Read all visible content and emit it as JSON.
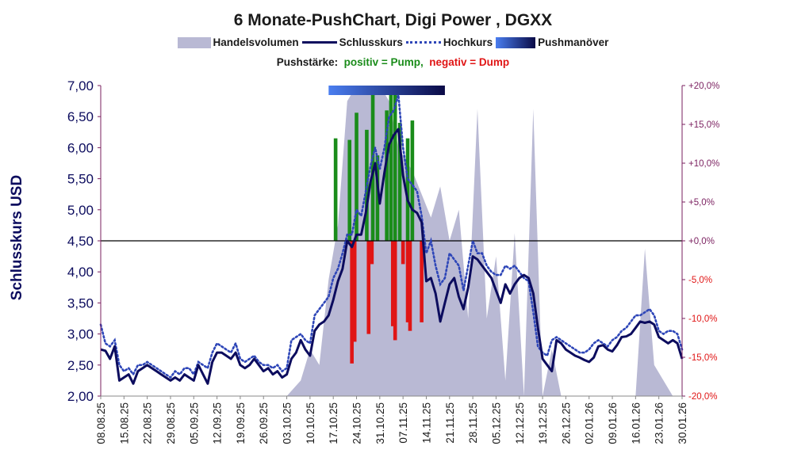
{
  "chart_data": {
    "type": "line",
    "title": "6 Monate-PushChart, Digi Power , DGXX",
    "subtitle": {
      "prefix": "Pushstärke:",
      "positive": "positiv = Pump,",
      "negative": "negativ = Dump"
    },
    "legend": [
      "Handelsvolumen",
      "Schlusskurs",
      "Hochkurs",
      "Pushmanöver"
    ],
    "legend_position": "top",
    "ylabel": "Schlusskurs USD",
    "ylim": [
      2.0,
      7.0
    ],
    "y_ticks": [
      "2,00",
      "2,50",
      "3,00",
      "3,50",
      "4,00",
      "4,50",
      "5,00",
      "5,50",
      "6,00",
      "6,50",
      "7,00"
    ],
    "y2_ticks": [
      "-20,0%",
      "-15,0%",
      "-10,0%",
      "-5,0%",
      "+0,0%",
      "+5,0%",
      "+10,0%",
      "+15,0%",
      "+20,0%"
    ],
    "y2_ticks_negative": [
      "-20,0%",
      "-15,0%",
      "-10,0%",
      "-5,0%"
    ],
    "y2lim": [
      -20,
      20
    ],
    "x_ticks": [
      "08.08.25",
      "15.08.25",
      "22.08.25",
      "29.08.25",
      "05.09.25",
      "12.09.25",
      "19.09.25",
      "26.09.25",
      "03.10.25",
      "10.10.25",
      "17.10.25",
      "24.10.25",
      "31.10.25",
      "07.11.25",
      "14.11.25",
      "21.11.25",
      "28.11.25",
      "05.12.25",
      "12.12.25",
      "19.12.25",
      "26.12.25",
      "02.01.26",
      "09.01.26",
      "16.01.26",
      "23.01.26",
      "30.01.26"
    ],
    "x_count": 126,
    "baseline_pct": 0,
    "push_maneuver": {
      "start": 49,
      "end": 74
    },
    "colors": {
      "volume": "#b9b9d4",
      "close": "#0c0c5e",
      "high": "#2e46b8",
      "pump": "#1a8c1a",
      "dump": "#e01515",
      "axis_left": "#0c0c5e",
      "axis_right": "#7a1f5f",
      "push_start": "#4a7ef0",
      "push_end": "#0a0a46"
    },
    "series": [
      {
        "name": "Schlusskurs",
        "x": [
          0,
          1,
          2,
          3,
          4,
          5,
          6,
          7,
          8,
          9,
          10,
          11,
          12,
          13,
          14,
          15,
          16,
          17,
          18,
          19,
          20,
          21,
          22,
          23,
          24,
          25,
          26,
          27,
          28,
          29,
          30,
          31,
          32,
          33,
          34,
          35,
          36,
          37,
          38,
          39,
          40,
          41,
          42,
          43,
          44,
          45,
          46,
          47,
          48,
          49,
          50,
          51,
          52,
          53,
          54,
          55,
          56,
          57,
          58,
          59,
          60,
          61,
          62,
          63,
          64,
          65,
          66,
          67,
          68,
          69,
          70,
          71,
          72,
          73,
          74,
          75,
          76,
          77,
          78,
          79,
          80,
          81,
          82,
          83,
          84,
          85,
          86,
          87,
          88,
          89,
          90,
          91,
          92,
          93,
          94,
          95,
          96,
          97,
          98,
          99,
          100,
          101,
          102,
          103,
          104,
          105,
          106,
          107,
          108,
          109,
          110,
          111,
          112,
          113,
          114,
          115,
          116,
          117,
          118,
          119,
          120,
          121,
          122,
          123,
          124,
          125
        ],
        "values": [
          2.75,
          2.73,
          2.6,
          2.8,
          2.25,
          2.3,
          2.35,
          2.2,
          2.4,
          2.45,
          2.5,
          2.45,
          2.4,
          2.35,
          2.3,
          2.25,
          2.3,
          2.25,
          2.35,
          2.3,
          2.25,
          2.5,
          2.35,
          2.2,
          2.55,
          2.7,
          2.7,
          2.65,
          2.6,
          2.7,
          2.5,
          2.45,
          2.5,
          2.6,
          2.5,
          2.4,
          2.45,
          2.35,
          2.4,
          2.3,
          2.35,
          2.6,
          2.7,
          2.9,
          2.75,
          2.65,
          3.05,
          3.15,
          3.2,
          3.3,
          3.55,
          3.85,
          4.05,
          4.5,
          4.4,
          4.6,
          4.6,
          4.95,
          5.45,
          5.75,
          5.1,
          5.6,
          6.05,
          6.2,
          6.3,
          5.55,
          5.15,
          5.0,
          4.95,
          4.8,
          3.85,
          3.9,
          3.65,
          3.2,
          3.5,
          3.8,
          3.9,
          3.6,
          3.4,
          3.75,
          4.25,
          4.2,
          4.1,
          4.0,
          3.9,
          3.7,
          3.5,
          3.8,
          3.65,
          3.8,
          3.9,
          3.95,
          3.9,
          3.65,
          3.1,
          2.6,
          2.5,
          2.4,
          2.9,
          2.85,
          2.75,
          2.7,
          2.65,
          2.62,
          2.58,
          2.55,
          2.62,
          2.8,
          2.82,
          2.75,
          2.72,
          2.82,
          2.95,
          2.96,
          3.0,
          3.1,
          3.2,
          3.18,
          3.2,
          3.15,
          2.95,
          2.9,
          2.85,
          2.9,
          2.85,
          2.6
        ]
      },
      {
        "name": "Hochkurs",
        "x": [
          0,
          1,
          2,
          3,
          4,
          5,
          6,
          7,
          8,
          9,
          10,
          11,
          12,
          13,
          14,
          15,
          16,
          17,
          18,
          19,
          20,
          21,
          22,
          23,
          24,
          25,
          26,
          27,
          28,
          29,
          30,
          31,
          32,
          33,
          34,
          35,
          36,
          37,
          38,
          39,
          40,
          41,
          42,
          43,
          44,
          45,
          46,
          47,
          48,
          49,
          50,
          51,
          52,
          53,
          54,
          55,
          56,
          57,
          58,
          59,
          60,
          61,
          62,
          63,
          64,
          65,
          66,
          67,
          68,
          69,
          70,
          71,
          72,
          73,
          74,
          75,
          76,
          77,
          78,
          79,
          80,
          81,
          82,
          83,
          84,
          85,
          86,
          87,
          88,
          89,
          90,
          91,
          92,
          93,
          94,
          95,
          96,
          97,
          98,
          99,
          100,
          101,
          102,
          103,
          104,
          105,
          106,
          107,
          108,
          109,
          110,
          111,
          112,
          113,
          114,
          115,
          116,
          117,
          118,
          119,
          120,
          121,
          122,
          123,
          124,
          125
        ],
        "values": [
          3.15,
          2.85,
          2.8,
          2.9,
          2.5,
          2.4,
          2.45,
          2.35,
          2.5,
          2.5,
          2.55,
          2.5,
          2.45,
          2.4,
          2.35,
          2.3,
          2.4,
          2.35,
          2.45,
          2.45,
          2.35,
          2.55,
          2.5,
          2.45,
          2.7,
          2.85,
          2.8,
          2.75,
          2.7,
          2.85,
          2.6,
          2.55,
          2.6,
          2.65,
          2.55,
          2.5,
          2.5,
          2.45,
          2.5,
          2.4,
          2.45,
          2.9,
          2.95,
          3.0,
          2.9,
          2.85,
          3.3,
          3.4,
          3.5,
          3.6,
          3.9,
          4.05,
          4.3,
          4.6,
          4.6,
          5.0,
          4.9,
          5.3,
          5.7,
          6.0,
          5.65,
          6.0,
          6.5,
          6.6,
          6.85,
          6.0,
          5.5,
          5.4,
          5.3,
          4.9,
          4.3,
          4.5,
          4.1,
          3.8,
          3.9,
          4.3,
          4.2,
          4.1,
          3.7,
          4.1,
          4.5,
          4.3,
          4.3,
          4.1,
          4.0,
          3.95,
          3.95,
          4.1,
          4.05,
          4.1,
          4.0,
          3.9,
          3.85,
          3.35,
          2.8,
          2.7,
          2.65,
          2.9,
          2.95,
          2.9,
          2.85,
          2.8,
          2.75,
          2.7,
          2.7,
          2.75,
          2.85,
          2.9,
          2.85,
          2.8,
          2.9,
          2.95,
          3.05,
          3.1,
          3.2,
          3.3,
          3.3,
          3.35,
          3.4,
          3.3,
          3.05,
          3.0,
          3.05,
          3.05,
          3.0,
          2.75
        ]
      },
      {
        "name": "Handelsvolumen",
        "x": [
          0,
          5,
          10,
          15,
          20,
          25,
          30,
          35,
          40,
          43,
          45,
          47,
          49,
          51,
          53,
          55,
          57,
          60,
          62,
          64,
          67,
          69,
          71,
          73,
          75,
          77,
          79,
          81,
          83,
          85,
          87,
          89,
          91,
          93,
          95,
          97,
          99,
          101,
          103,
          105,
          107,
          109,
          111,
          113,
          115,
          117,
          119,
          121,
          123,
          125
        ],
        "values_pct": [
          -20,
          -20,
          -20,
          -20,
          -20,
          -20,
          -20,
          -20,
          -20,
          -18,
          -14,
          -16,
          -5,
          2,
          18,
          20,
          20,
          20,
          18,
          12,
          9,
          6,
          3,
          7,
          0,
          4,
          -10,
          17,
          -10,
          -2,
          -18,
          1,
          -20,
          17,
          -20,
          -14,
          -20,
          -20,
          -20,
          -20,
          -20,
          -20,
          -20,
          -20,
          -20,
          -1,
          -16,
          -18,
          -20,
          -20
        ]
      }
    ],
    "push_bars": [
      {
        "x": 50.5,
        "pct": 13.2,
        "sign": "pump"
      },
      {
        "x": 53.5,
        "pct": 13.0,
        "sign": "pump"
      },
      {
        "x": 55.0,
        "pct": 16.5,
        "sign": "pump"
      },
      {
        "x": 57.2,
        "pct": 14.3,
        "sign": "pump"
      },
      {
        "x": 58.5,
        "pct": 18.8,
        "sign": "pump"
      },
      {
        "x": 59.5,
        "pct": 11.0,
        "sign": "pump"
      },
      {
        "x": 61.5,
        "pct": 16.8,
        "sign": "pump"
      },
      {
        "x": 62.4,
        "pct": 18.8,
        "sign": "pump"
      },
      {
        "x": 63.3,
        "pct": 18.8,
        "sign": "pump"
      },
      {
        "x": 64.3,
        "pct": 15.2,
        "sign": "pump"
      },
      {
        "x": 66.0,
        "pct": 13.2,
        "sign": "pump"
      },
      {
        "x": 67.0,
        "pct": 15.5,
        "sign": "pump"
      },
      {
        "x": 54.0,
        "pct": -15.8,
        "sign": "dump"
      },
      {
        "x": 54.6,
        "pct": -13.0,
        "sign": "dump"
      },
      {
        "x": 57.6,
        "pct": -12.0,
        "sign": "dump"
      },
      {
        "x": 58.3,
        "pct": -3.0,
        "sign": "dump"
      },
      {
        "x": 62.8,
        "pct": -11.0,
        "sign": "dump"
      },
      {
        "x": 63.3,
        "pct": -12.8,
        "sign": "dump"
      },
      {
        "x": 65.0,
        "pct": -3.0,
        "sign": "dump"
      },
      {
        "x": 66.0,
        "pct": -10.5,
        "sign": "dump"
      },
      {
        "x": 66.5,
        "pct": -11.6,
        "sign": "dump"
      },
      {
        "x": 69.0,
        "pct": -10.5,
        "sign": "dump"
      }
    ]
  }
}
